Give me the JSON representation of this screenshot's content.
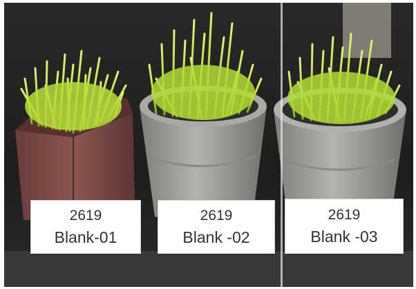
{
  "labels": [
    {
      "code": "2619",
      "name": "Blank-01"
    },
    {
      "code": "2619",
      "name": "Blank -02"
    },
    {
      "code": "2619",
      "name": "Blank -03"
    }
  ],
  "colors": {
    "background": "#1f1f1f",
    "grass_light": "#c9e84a",
    "grass_mid": "#9fd12c",
    "pot_red": "#7a4a46",
    "pot_gray": "#9a9a98",
    "label_bg": "#ffffff",
    "label_text": "#333333"
  }
}
